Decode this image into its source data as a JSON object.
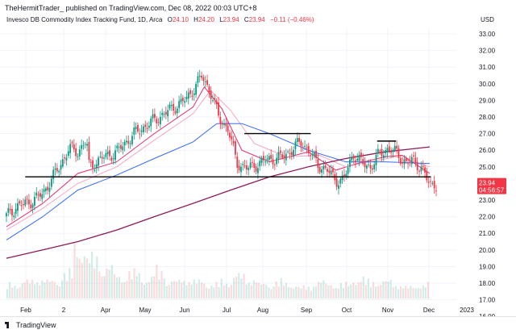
{
  "header": {
    "publisher": "TheHermitTrader_ published on TradingView.com, Dec 08, 2022 00:03 UTC+8",
    "instrument": "Invesco DB Commodity Index Tracking Fund, 1D, Arca",
    "open_label": "O",
    "open": "24.10",
    "high_label": "H",
    "high": "24.20",
    "low_label": "L",
    "low": "23.94",
    "close_label": "C",
    "close": "23.94",
    "change": "−0.11 (−0.46%)",
    "currency": "USD"
  },
  "footer": {
    "logo_text": "TradingView"
  },
  "colors": {
    "up": "#089981",
    "down": "#f23645",
    "ma_fast": "#e91e63",
    "ma_mid": "#f48fb1",
    "ma_blue": "#2962ff",
    "ma_long": "#880e4f",
    "line": "#000000"
  },
  "chart_data": {
    "type": "candlestick",
    "x_ticks": [
      "Feb",
      "2",
      "Apr",
      "May",
      "Jun",
      "Jul",
      "Aug",
      "Sep",
      "Oct",
      "Nov",
      "Dec",
      "2023"
    ],
    "y_ticks": [
      "33.00",
      "32.00",
      "31.00",
      "30.00",
      "29.00",
      "28.00",
      "27.00",
      "26.00",
      "25.00",
      "24.00",
      "23.00",
      "22.00",
      "21.00",
      "20.00",
      "19.00",
      "18.00",
      "17.00",
      "16.00"
    ],
    "ylim": [
      16,
      33.4
    ],
    "price_badge": {
      "price": "23.94",
      "countdown": "04:56:57",
      "value": 23.94
    },
    "horizontal_lines": [
      {
        "value": 24.4,
        "from": "Jan 18",
        "to": "Dec 8"
      },
      {
        "value": 27.0,
        "from": "Jul 12",
        "to": "Sep 3"
      },
      {
        "value": 26.55,
        "from": "Oct 26",
        "to": "Nov 10"
      }
    ],
    "close_path": [
      [
        "Dec 29",
        21.6
      ],
      [
        "Jan 11",
        22.6
      ],
      [
        "Jan 25",
        23.0
      ],
      [
        "Feb 1",
        23.4
      ],
      [
        "Feb 15",
        25.1
      ],
      [
        "Feb 22",
        26.1
      ],
      [
        "Mar 1",
        25.9
      ],
      [
        "Mar 8",
        26.6
      ],
      [
        "Mar 10",
        25.0
      ],
      [
        "Mar 22",
        25.6
      ],
      [
        "Apr 1",
        25.9
      ],
      [
        "Apr 15",
        27.0
      ],
      [
        "Apr 29",
        27.7
      ],
      [
        "May 13",
        28.4
      ],
      [
        "May 27",
        29.1
      ],
      [
        "Jun 8",
        30.45
      ],
      [
        "Jun 15",
        29.5
      ],
      [
        "Jun 22",
        27.9
      ],
      [
        "Jun 29",
        27.3
      ],
      [
        "Jul 6",
        25.2
      ],
      [
        "Jul 15",
        24.9
      ],
      [
        "Jul 29",
        25.4
      ],
      [
        "Aug 12",
        25.6
      ],
      [
        "Aug 26",
        26.5
      ],
      [
        "Sep 1",
        26.0
      ],
      [
        "Sep 9",
        25.1
      ],
      [
        "Sep 16",
        24.8
      ],
      [
        "Sep 23",
        24.2
      ],
      [
        "Sep 29",
        24.2
      ],
      [
        "Oct 7",
        25.8
      ],
      [
        "Oct 14",
        25.2
      ],
      [
        "Oct 21",
        25.0
      ],
      [
        "Oct 28",
        25.8
      ],
      [
        "Nov 4",
        26.1
      ],
      [
        "Nov 11",
        25.8
      ],
      [
        "Nov 18",
        25.2
      ],
      [
        "Nov 23",
        25.4
      ],
      [
        "Nov 30",
        25.0
      ],
      [
        "Dec 5",
        24.2
      ],
      [
        "Dec 7",
        23.94
      ]
    ],
    "moving_averages": [
      {
        "color": "#e91e63",
        "points": [
          [
            "Jan 3",
            21.4
          ],
          [
            "Feb 1",
            22.8
          ],
          [
            "Mar 1",
            24.6
          ],
          [
            "Apr 1",
            25.3
          ],
          [
            "May 1",
            27.0
          ],
          [
            "Jun 1",
            28.6
          ],
          [
            "Jun 10",
            29.8
          ],
          [
            "Jun 24",
            28.5
          ],
          [
            "Jul 10",
            26.0
          ],
          [
            "Aug 1",
            25.3
          ],
          [
            "Sep 1",
            25.9
          ],
          [
            "Sep 23",
            24.8
          ],
          [
            "Oct 10",
            25.2
          ],
          [
            "Nov 1",
            25.6
          ],
          [
            "Nov 15",
            25.7
          ],
          [
            "Dec 7",
            24.6
          ]
        ]
      },
      {
        "color": "#f48fb1",
        "points": [
          [
            "Jan 3",
            21.2
          ],
          [
            "Feb 1",
            22.5
          ],
          [
            "Mar 1",
            24.0
          ],
          [
            "Apr 1",
            25.0
          ],
          [
            "May 1",
            26.6
          ],
          [
            "Jun 1",
            28.2
          ],
          [
            "Jun 15",
            29.6
          ],
          [
            "Jul 1",
            28.4
          ],
          [
            "Jul 20",
            26.4
          ],
          [
            "Aug 15",
            25.6
          ],
          [
            "Sep 10",
            25.7
          ],
          [
            "Oct 1",
            25.0
          ],
          [
            "Oct 20",
            25.3
          ],
          [
            "Nov 10",
            25.6
          ],
          [
            "Dec 7",
            25.0
          ]
        ]
      },
      {
        "color": "#2962ff",
        "points": [
          [
            "Jan 3",
            20.6
          ],
          [
            "Feb 1",
            22.0
          ],
          [
            "Mar 1",
            23.6
          ],
          [
            "Apr 1",
            24.5
          ],
          [
            "May 1",
            25.5
          ],
          [
            "Jun 1",
            26.5
          ],
          [
            "Jun 20",
            27.6
          ],
          [
            "Jul 10",
            27.6
          ],
          [
            "Aug 1",
            27.0
          ],
          [
            "Sep 1",
            26.0
          ],
          [
            "Oct 1",
            25.3
          ],
          [
            "Nov 1",
            25.3
          ],
          [
            "Dec 7",
            25.2
          ]
        ]
      },
      {
        "color": "#880e4f",
        "points": [
          [
            "Jan 3",
            19.5
          ],
          [
            "Feb 1",
            20.0
          ],
          [
            "Mar 1",
            20.5
          ],
          [
            "Apr 1",
            21.2
          ],
          [
            "May 1",
            22.0
          ],
          [
            "Jun 1",
            22.8
          ],
          [
            "Jul 1",
            23.6
          ],
          [
            "Aug 1",
            24.4
          ],
          [
            "Sep 1",
            25.0
          ],
          [
            "Oct 1",
            25.5
          ],
          [
            "Nov 1",
            25.9
          ],
          [
            "Dec 7",
            26.2
          ]
        ]
      }
    ],
    "volume_relative": [
      0.25,
      0.3,
      0.35,
      0.3,
      0.45,
      0.9,
      0.7,
      0.55,
      0.4,
      0.45,
      0.35,
      0.5,
      0.3,
      0.35,
      0.3,
      0.25,
      0.3,
      0.4,
      0.35,
      0.25,
      0.3,
      0.25,
      0.2,
      0.3,
      0.25,
      0.25,
      0.35,
      0.3,
      0.3,
      0.25,
      0.2,
      0.25
    ]
  }
}
